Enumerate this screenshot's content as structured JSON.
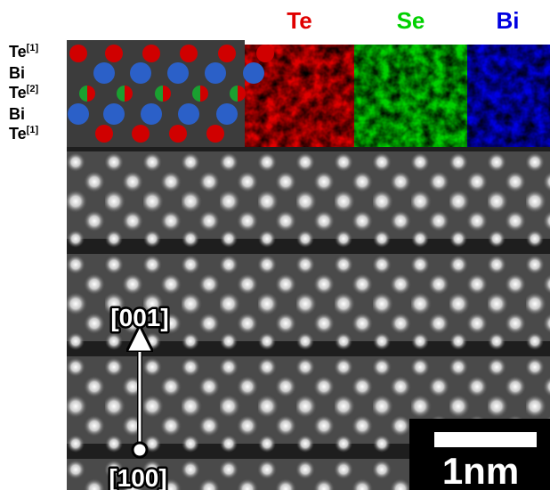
{
  "layer_labels": [
    {
      "element": "Te",
      "superscript": "[1]"
    },
    {
      "element": "Bi"
    },
    {
      "element": "Te",
      "superscript": "[2]"
    },
    {
      "element": "Bi"
    },
    {
      "element": "Te",
      "superscript": "[1]"
    }
  ],
  "element_maps": [
    {
      "label": "Te",
      "color": "#e00000"
    },
    {
      "label": "Se",
      "color": "#00d000"
    },
    {
      "label": "Bi",
      "color": "#0000e0"
    }
  ],
  "direction_up": "[001]",
  "direction_origin": "[100]",
  "scale_bar": "1nm"
}
